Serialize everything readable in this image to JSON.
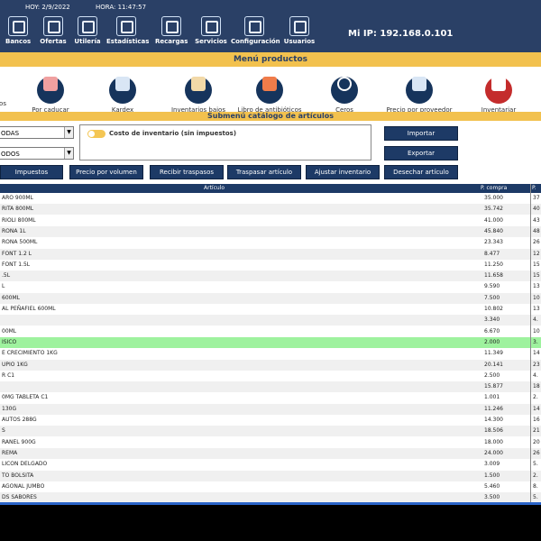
{
  "header": {
    "date": "HOY: 2/9/2022",
    "time": "HORA: 11:47:57",
    "ip": "Mi IP: 192.168.0.101"
  },
  "nav": [
    {
      "label": "Bancos",
      "icon": "bank-icon"
    },
    {
      "label": "Ofertas",
      "icon": "offers-icon"
    },
    {
      "label": "Utilería",
      "icon": "tools-icon"
    },
    {
      "label": "Estadísticas",
      "icon": "stats-icon"
    },
    {
      "label": "Recargas",
      "icon": "recharge-icon"
    },
    {
      "label": "Servicios",
      "icon": "services-icon"
    },
    {
      "label": "Configuración",
      "icon": "gear-icon"
    },
    {
      "label": "Usuarios",
      "icon": "users-icon"
    }
  ],
  "menu_title": "Menú productos",
  "menu_items": [
    {
      "label": "os",
      "icon": "partial-icon"
    },
    {
      "label": "Por caducar",
      "icon": "expire-calendar-icon"
    },
    {
      "label": "Kardex",
      "icon": "kardex-icon"
    },
    {
      "label": "Inventarios bajos",
      "icon": "low-inventory-icon"
    },
    {
      "label": "Libro de antibióticos",
      "icon": "antibiotics-book-icon"
    },
    {
      "label": "Ceros",
      "icon": "zero-icon"
    },
    {
      "label": "Precio por proveedor",
      "icon": "supplier-price-icon"
    },
    {
      "label": "Inventariar",
      "icon": "inventory-icon"
    }
  ],
  "submenu_title": "Submenú catálogo de artículos",
  "filters": {
    "select1": "ODAS",
    "select2": "ODOS"
  },
  "cost_toggle_label": "Costo de inventario (sin impuestos)",
  "right_buttons": {
    "import": "Importar",
    "export": "Exportar"
  },
  "actions": [
    "Impuestos",
    "Precio por volumen",
    "Recibir traspasos",
    "Traspasar artículo",
    "Ajustar inventario",
    "Desechar artículo"
  ],
  "table": {
    "headers": {
      "article": "Artículo",
      "price_buy": "P. compra",
      "price_sell": "P. v"
    },
    "rows": [
      {
        "name": "ARO 900ML",
        "buy": "35.000",
        "sell": "37"
      },
      {
        "name": "RITA 800ML",
        "buy": "35.742",
        "sell": "40"
      },
      {
        "name": "RIOLI 800ML",
        "buy": "41.000",
        "sell": "43"
      },
      {
        "name": "RONA 1L",
        "buy": "45.840",
        "sell": "48"
      },
      {
        "name": "RONA 500ML",
        "buy": "23.343",
        "sell": "26"
      },
      {
        "name": "FONT 1.2 L",
        "buy": "8.477",
        "sell": "12"
      },
      {
        "name": "FONT 1.5L",
        "buy": "11.250",
        "sell": "15"
      },
      {
        "name": ".5L",
        "buy": "11.658",
        "sell": "15"
      },
      {
        "name": "L",
        "buy": "9.590",
        "sell": "13"
      },
      {
        "name": "600ML",
        "buy": "7.500",
        "sell": "10"
      },
      {
        "name": "AL PEÑAFIEL 600ML",
        "buy": "10.802",
        "sell": "13"
      },
      {
        "name": "",
        "buy": "3.340",
        "sell": "4."
      },
      {
        "name": "00ML",
        "buy": "6.670",
        "sell": "10"
      },
      {
        "name": "ISICO",
        "buy": "2.000",
        "sell": "3."
      },
      {
        "name": "E CRECIMIENTO 1KG",
        "buy": "11.349",
        "sell": "14"
      },
      {
        "name": "UPIO 1KG",
        "buy": "20.141",
        "sell": "23"
      },
      {
        "name": "R C1",
        "buy": "2.500",
        "sell": "4."
      },
      {
        "name": "",
        "buy": "15.877",
        "sell": "18"
      },
      {
        "name": "0MG TABLETA C1",
        "buy": "1.001",
        "sell": "2."
      },
      {
        "name": "130G",
        "buy": "11.246",
        "sell": "14"
      },
      {
        "name": "AUTOS 288G",
        "buy": "14.300",
        "sell": "16"
      },
      {
        "name": "S",
        "buy": "18.506",
        "sell": "21"
      },
      {
        "name": "RANEL 900G",
        "buy": "18.000",
        "sell": "20"
      },
      {
        "name": "REMA",
        "buy": "24.000",
        "sell": "26"
      },
      {
        "name": "LICON DELGADO",
        "buy": "3.009",
        "sell": "5."
      },
      {
        "name": "TO BOLSITA",
        "buy": "1.500",
        "sell": "2."
      },
      {
        "name": "AGONAL JUMBO",
        "buy": "5.460",
        "sell": "8."
      },
      {
        "name": "DS SABORES",
        "buy": "3.500",
        "sell": "5."
      }
    ]
  }
}
